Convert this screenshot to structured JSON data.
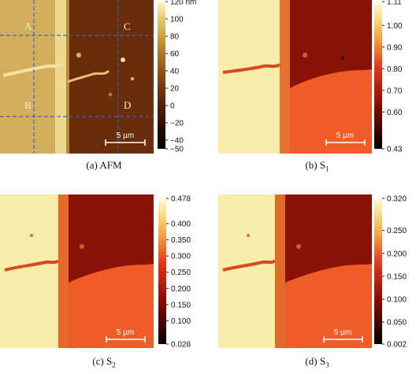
{
  "panels": [
    {
      "id": "afm",
      "caption_label": "(a) AFM",
      "caption_main": "",
      "caption_sub": "",
      "colorbar": {
        "ticks": [
          "120 nm",
          "100",
          "80",
          "60",
          "40",
          "20",
          "0",
          "−20",
          "−40",
          "−50"
        ],
        "values": [
          120,
          100,
          80,
          60,
          40,
          20,
          0,
          -20,
          -40,
          -50
        ],
        "min": -50,
        "max": 120,
        "scheme": "afm-copper"
      },
      "region_labels": [
        "A",
        "B",
        "C",
        "D"
      ],
      "scalebar": "5 µm"
    },
    {
      "id": "s1",
      "caption_label": "(b) ",
      "caption_main": "S",
      "caption_sub": "1",
      "colorbar": {
        "ticks": [
          "1.11",
          "1.00",
          "0.90",
          "0.80",
          "0.70",
          "0.60",
          "0.43"
        ],
        "values": [
          1.11,
          1.0,
          0.9,
          0.8,
          0.7,
          0.6,
          0.43
        ],
        "min": 0.43,
        "max": 1.11,
        "scheme": "heat"
      },
      "scalebar": "5 µm"
    },
    {
      "id": "s2",
      "caption_label": "(c) ",
      "caption_main": "S",
      "caption_sub": "2",
      "colorbar": {
        "ticks": [
          "0.478",
          "0.400",
          "0.350",
          "0.300",
          "0.250",
          "0.200",
          "0.150",
          "0.100",
          "0.028"
        ],
        "values": [
          0.478,
          0.4,
          0.35,
          0.3,
          0.25,
          0.2,
          0.15,
          0.1,
          0.028
        ],
        "min": 0.028,
        "max": 0.478,
        "scheme": "heat"
      },
      "scalebar": "5 µm"
    },
    {
      "id": "s3",
      "caption_label": "(d) ",
      "caption_main": "S",
      "caption_sub": "3",
      "colorbar": {
        "ticks": [
          "0.320",
          "0.250",
          "0.200",
          "0.150",
          "0.100",
          "0.050",
          "0.002"
        ],
        "values": [
          0.32,
          0.25,
          0.2,
          0.15,
          0.1,
          0.05,
          0.002
        ],
        "min": 0.002,
        "max": 0.32,
        "scheme": "heat"
      },
      "scalebar": "5 µm"
    }
  ],
  "colors": {
    "afm_left": "#d3ad5a",
    "afm_strip": "#ecd98f",
    "afm_right": "#6a2d0a",
    "heat_left": "#f8eeaa",
    "heat_upper_right": "#8a1206",
    "heat_lower_right": "#f05c28",
    "guide_lines": "#3a62c8"
  }
}
